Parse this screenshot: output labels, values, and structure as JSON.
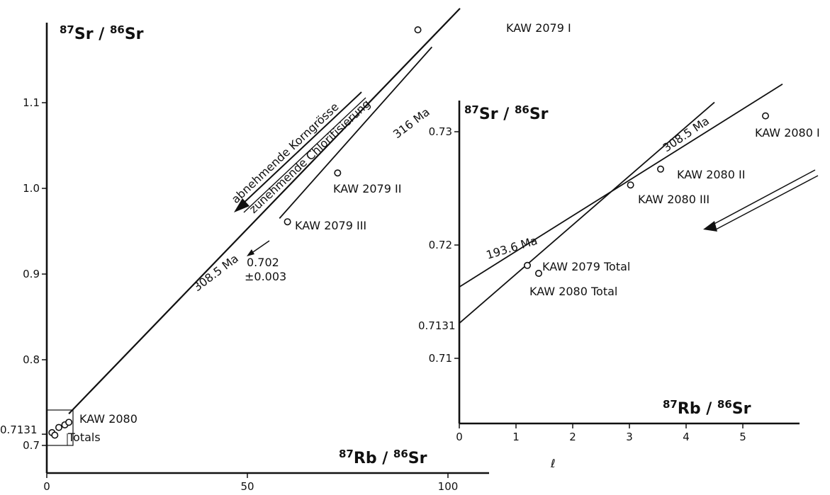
{
  "chart_data": [
    {
      "type": "scatter",
      "xlabel": "87Rb/86Sr",
      "ylabel": "87Sr/86Sr",
      "xlim": [
        0,
        105
      ],
      "ylim": [
        0.66,
        1.2
      ],
      "x_ticks": [
        "0",
        "50",
        "100"
      ],
      "y_ticks": [
        "0.7",
        "0.8",
        "0.9",
        "1.0",
        "1.1"
      ],
      "y_tick_values": [
        0.7,
        0.8,
        0.9,
        1.0,
        1.1
      ],
      "x_tick_values": [
        0,
        50,
        100
      ],
      "intercept_label": "0.7131",
      "intercept_value": 0.7131,
      "points": [
        {
          "label": "KAW 2079 I",
          "x": 92.5,
          "y": 1.185
        },
        {
          "label": "KAW 2079 II",
          "x": 72.5,
          "y": 1.018
        },
        {
          "label": "KAW 2079 III",
          "x": 60.0,
          "y": 0.961
        },
        {
          "label": "",
          "x": 1.3,
          "y": 0.715
        },
        {
          "label": "",
          "x": 2.0,
          "y": 0.712
        },
        {
          "label": "",
          "x": 3.0,
          "y": 0.721
        },
        {
          "label": "",
          "x": 4.5,
          "y": 0.724
        },
        {
          "label": "",
          "x": 5.5,
          "y": 0.727
        }
      ],
      "lines": [
        {
          "label": "308.5 Ma",
          "from": [
            5.5,
            0.737
          ],
          "to": [
            103,
            1.21
          ]
        },
        {
          "label": "316 Ma",
          "from": [
            58,
            0.965
          ],
          "to": [
            96,
            1.165
          ]
        }
      ],
      "annotations": {
        "kaw2080": "KAW 2080",
        "totals": "Totals",
        "age_3085": "308.5 Ma",
        "age_316": "316 Ma",
        "initial_ratio": "0.702",
        "initial_error": "±0.003",
        "trend_grain": "abnehmende Korngrösse",
        "trend_chlorite": "zunehmende Chloritisierung"
      }
    },
    {
      "type": "scatter",
      "xlabel": "87Rb/86Sr",
      "ylabel": "87Sr/86Sr",
      "xlim": [
        0,
        5.7
      ],
      "ylim": [
        0.7045,
        0.7325
      ],
      "x_ticks": [
        "0",
        "1",
        "2",
        "3",
        "4",
        "5"
      ],
      "y_ticks": [
        "0.71",
        "0.72",
        "0.73"
      ],
      "y_tick_values": [
        0.71,
        0.72,
        0.73
      ],
      "x_tick_values": [
        0,
        1,
        2,
        3,
        4,
        5
      ],
      "intercept_label": "0.7131",
      "intercept_value": 0.7131,
      "points": [
        {
          "label": "KAW 2080 I",
          "x": 5.4,
          "y": 0.7314
        },
        {
          "label": "KAW 2080 II",
          "x": 3.55,
          "y": 0.7267
        },
        {
          "label": "KAW 2080 III",
          "x": 3.02,
          "y": 0.7253
        },
        {
          "label": "KAW 2079 Total",
          "x": 1.2,
          "y": 0.7182
        },
        {
          "label": "KAW 2080 Total",
          "x": 1.4,
          "y": 0.7175
        }
      ],
      "lines": [
        {
          "label": "308.5 Ma",
          "from": [
            0,
            0.7131
          ],
          "to": [
            4.5,
            0.7326
          ]
        },
        {
          "label": "193.6 Ma",
          "from": [
            0,
            0.7163
          ],
          "to": [
            5.7,
            0.7342
          ]
        }
      ]
    }
  ]
}
